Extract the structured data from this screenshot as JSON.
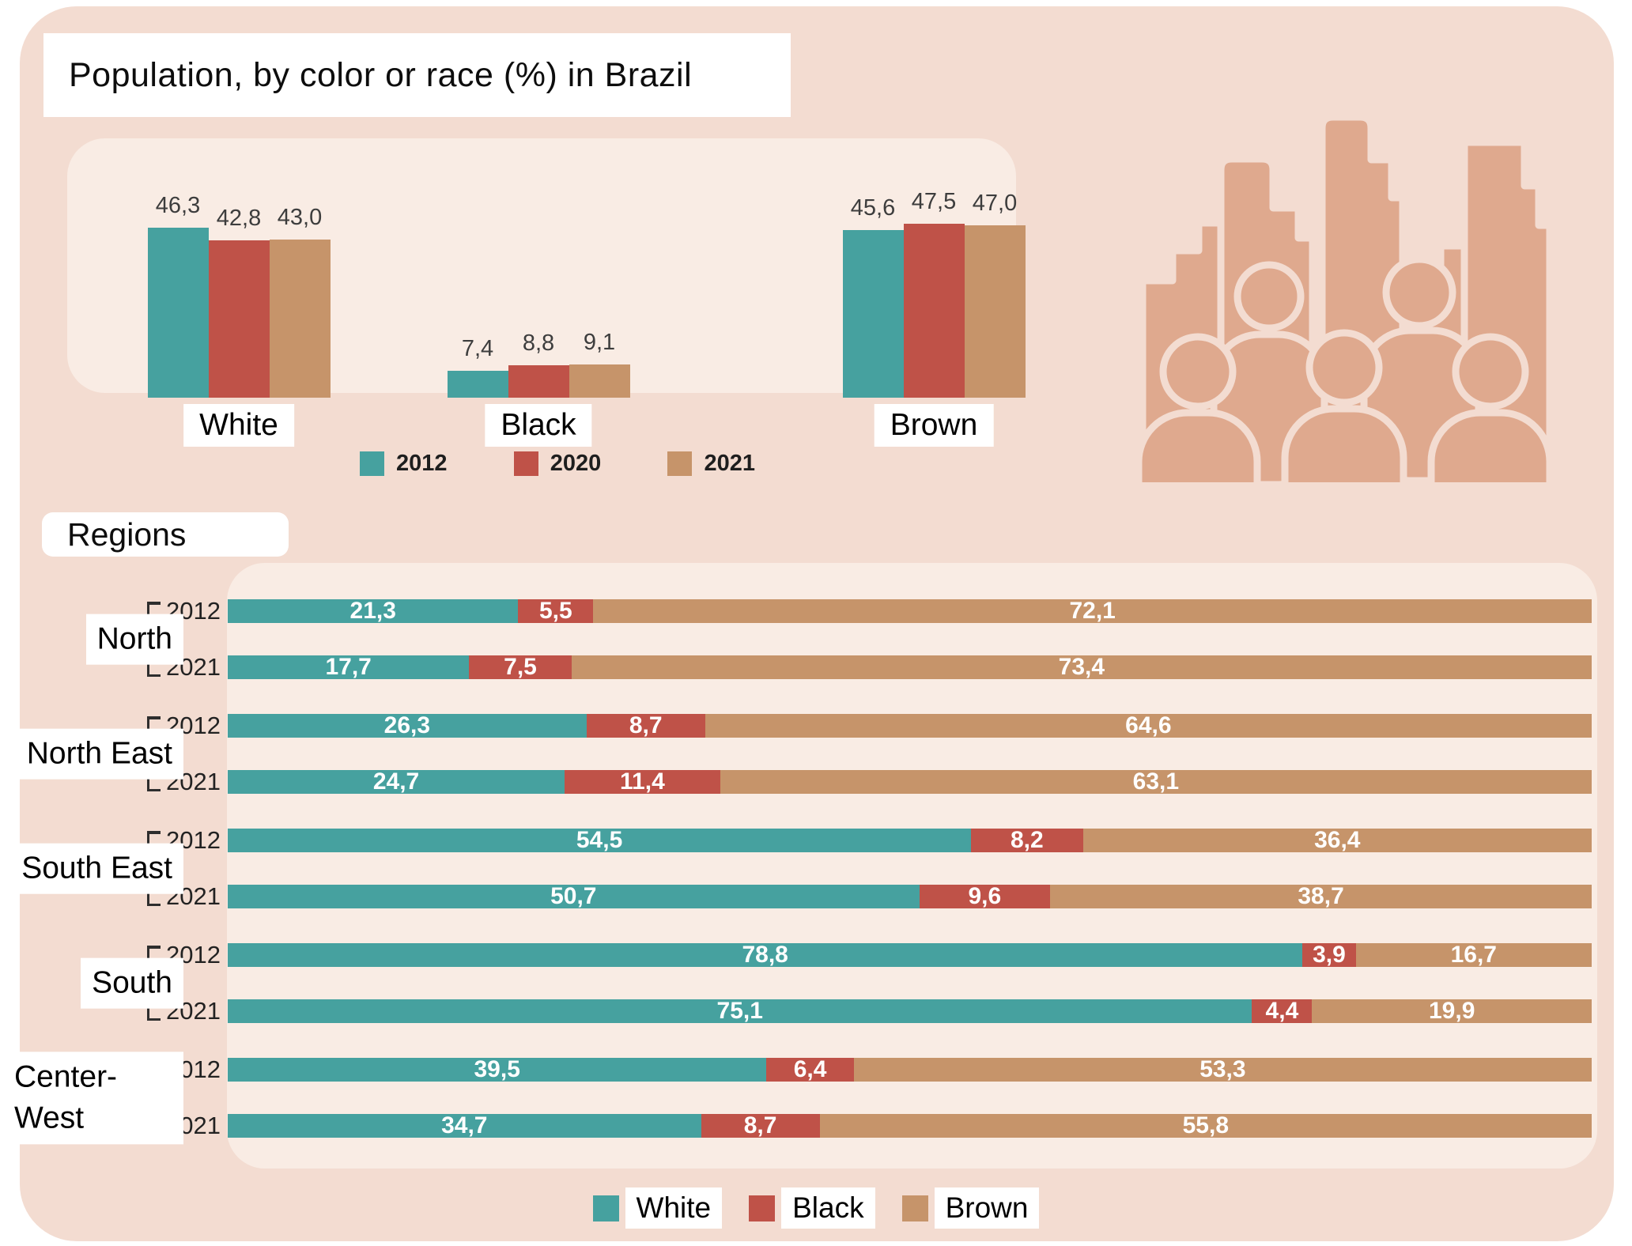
{
  "title": "Population, by color or race (%) in Brazil",
  "regions_header": "Regions",
  "decimal_separator": ",",
  "colors": {
    "page_background": "#ffffff",
    "panel_background": "#f3dcd1",
    "inner_panel_background": "#f9ece4",
    "teal": "#46a19f",
    "red": "#bf5248",
    "brown": "#c6946a",
    "icon": "#dfa98e",
    "value_text": "#3d3d3d",
    "bar_label_text": "#ffffff"
  },
  "icon": {
    "name": "city-crowd-icon",
    "description": "city skyline with crowd of five people"
  },
  "chart_data": [
    {
      "type": "bar",
      "title": "Population, by color or race (%) in Brazil",
      "categories": [
        "White",
        "Black",
        "Brown"
      ],
      "series": [
        {
          "name": "2012",
          "color": "#46a19f",
          "values": [
            46.3,
            7.4,
            45.6
          ]
        },
        {
          "name": "2020",
          "color": "#bf5248",
          "values": [
            42.8,
            8.8,
            47.5
          ]
        },
        {
          "name": "2021",
          "color": "#c6946a",
          "values": [
            43.0,
            9.1,
            47.0
          ]
        }
      ],
      "value_labels_shown": true,
      "legend_position": "bottom",
      "ylim": [
        0,
        50
      ],
      "grid": false
    },
    {
      "type": "bar",
      "subtype": "horizontal-stacked",
      "title": "Regions",
      "categories": [
        "North",
        "North East",
        "South East",
        "South",
        "Center-West"
      ],
      "years": [
        "2012",
        "2021"
      ],
      "series": [
        {
          "name": "White",
          "color": "#46a19f",
          "values": {
            "2012": [
              21.3,
              26.3,
              54.5,
              78.8,
              39.5
            ],
            "2021": [
              17.7,
              24.7,
              50.7,
              75.1,
              34.7
            ]
          }
        },
        {
          "name": "Black",
          "color": "#bf5248",
          "values": {
            "2012": [
              5.5,
              8.7,
              8.2,
              3.9,
              6.4
            ],
            "2021": [
              7.5,
              11.4,
              9.6,
              4.4,
              8.7
            ]
          }
        },
        {
          "name": "Brown",
          "color": "#c6946a",
          "values": {
            "2012": [
              72.1,
              64.6,
              36.4,
              16.7,
              53.3
            ],
            "2021": [
              73.4,
              63.1,
              38.7,
              19.9,
              55.8
            ]
          }
        }
      ],
      "xlim": [
        0,
        100
      ],
      "value_labels_shown": true,
      "legend_position": "bottom",
      "grid": false
    }
  ]
}
